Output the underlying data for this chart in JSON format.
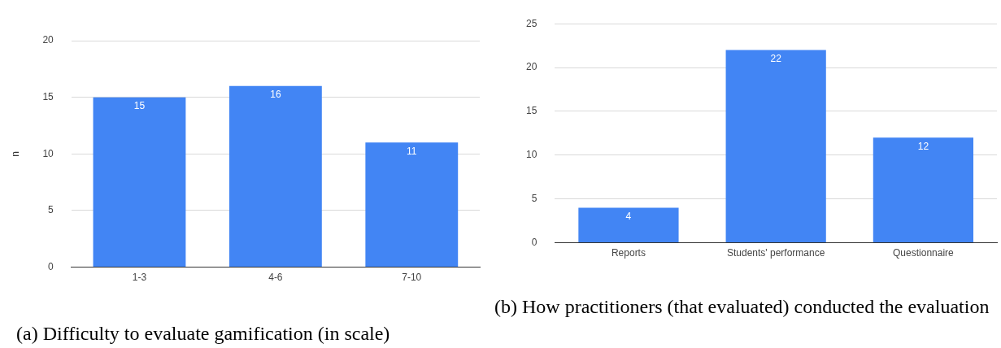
{
  "chart_data": [
    {
      "type": "bar",
      "categories": [
        "1-3",
        "4-6",
        "7-10"
      ],
      "values": [
        15,
        16,
        11
      ],
      "color": "#4285f4",
      "ylabel": "n",
      "ylim": [
        0,
        20
      ],
      "yticks": [
        0,
        5,
        10,
        15,
        20
      ],
      "grid": "y",
      "data_labels": true,
      "legend": false,
      "annotations": [
        "(a) Difficulty to evaluate gamification (in scale)"
      ]
    },
    {
      "type": "bar",
      "categories": [
        "Reports",
        "Students' performance",
        "Questionnaire"
      ],
      "values": [
        4,
        22,
        12
      ],
      "color": "#4285f4",
      "ylim": [
        0,
        25
      ],
      "yticks": [
        0,
        5,
        10,
        15,
        20,
        25
      ],
      "grid": "y",
      "data_labels": true,
      "legend": false,
      "annotations": [
        "(b) How practitioners (that evaluated) conducted the evaluation"
      ]
    }
  ]
}
